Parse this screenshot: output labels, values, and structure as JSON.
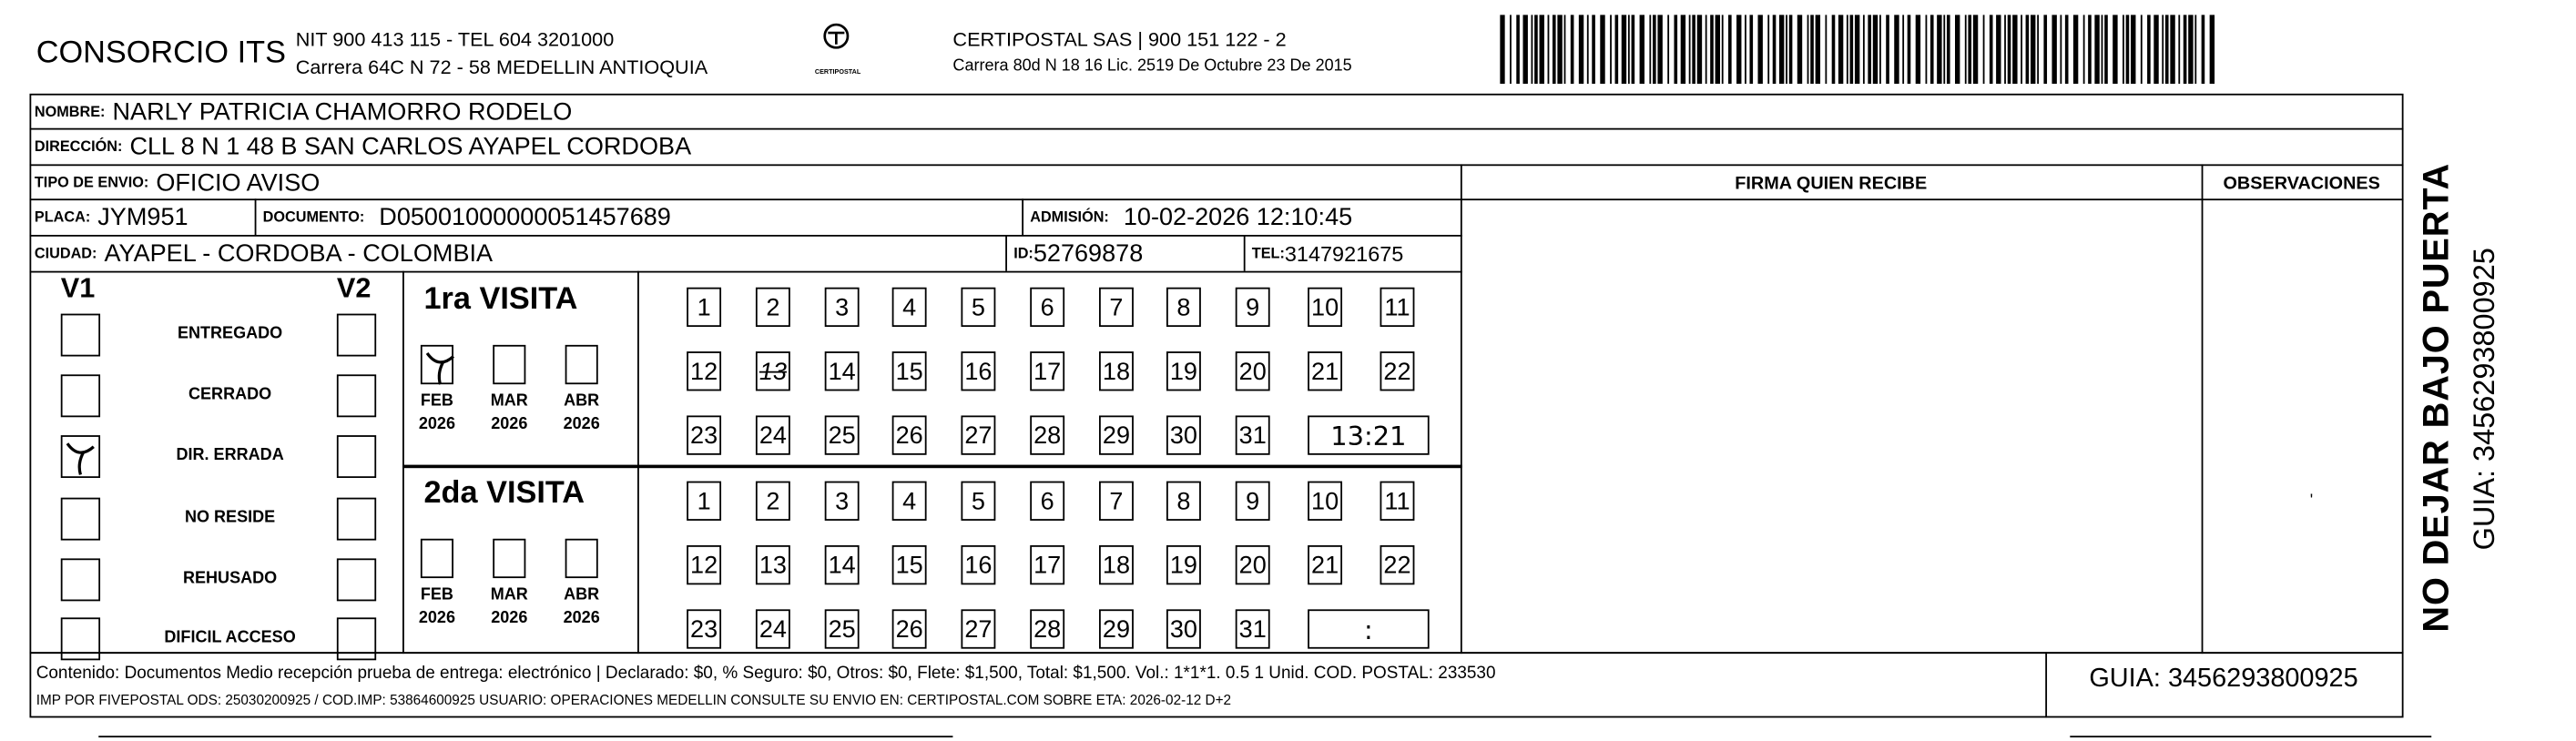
{
  "header": {
    "company": "CONSORCIO ITS",
    "nit_line": "NIT 900 413 115 - TEL 604 3201000",
    "address_line": "Carrera 64C N 72 - 58 MEDELLIN ANTIOQUIA",
    "logo_text": "CERTIPOSTAL",
    "carrier_line": "CERTIPOSTAL SAS | 900 151 122 - 2",
    "carrier_address": "Carrera 80d N 18 16  Lic. 2519 De Octubre 23 De 2015"
  },
  "fields": {
    "nombre_label": "NOMBRE:",
    "nombre": "NARLY PATRICIA CHAMORRO RODELO",
    "direccion_label": "DIRECCIÓN:",
    "direccion": "CLL 8 N 1 48 B SAN CARLOS AYAPEL CORDOBA",
    "tipo_label": "TIPO DE ENVIO:",
    "tipo": "OFICIO AVISO",
    "placa_label": "PLACA:",
    "placa": "JYM951",
    "documento_label": "DOCUMENTO:",
    "documento": "D05001000000051457689",
    "admision_label": "ADMISIÓN:",
    "admision": "10-02-2026 12:10:45",
    "ciudad_label": "CIUDAD:",
    "ciudad": "AYAPEL - CORDOBA - COLOMBIA",
    "id_label": "ID:",
    "id": "52769878",
    "tel_label": "TEL:",
    "tel": "3147921675"
  },
  "columns": {
    "firma": "FIRMA QUIEN RECIBE",
    "observaciones": "OBSERVACIONES"
  },
  "status": {
    "v1": "V1",
    "v2": "V2",
    "items": [
      {
        "label": "ENTREGADO",
        "v1": false,
        "v2": false
      },
      {
        "label": "CERRADO",
        "v1": false,
        "v2": false
      },
      {
        "label": "DIR. ERRADA",
        "v1": true,
        "v2": false
      },
      {
        "label": "NO RESIDE",
        "v1": false,
        "v2": false
      },
      {
        "label": "REHUSADO",
        "v1": false,
        "v2": false
      },
      {
        "label": "DIFICIL ACCESO",
        "v1": false,
        "v2": false
      }
    ]
  },
  "visits": [
    {
      "title": "1ra VISITA",
      "months": [
        {
          "m": "FEB",
          "y": "2026",
          "checked": true
        },
        {
          "m": "MAR",
          "y": "2026",
          "checked": false
        },
        {
          "m": "ABR",
          "y": "2026",
          "checked": false
        }
      ],
      "days": [
        "1",
        "2",
        "3",
        "4",
        "5",
        "6",
        "7",
        "8",
        "9",
        "10",
        "11",
        "12",
        "13",
        "14",
        "15",
        "16",
        "17",
        "18",
        "19",
        "20",
        "21",
        "22",
        "23",
        "24",
        "25",
        "26",
        "27",
        "28",
        "29",
        "30",
        "31"
      ],
      "marked_day": "13",
      "time": "13:21"
    },
    {
      "title": "2da VISITA",
      "months": [
        {
          "m": "FEB",
          "y": "2026",
          "checked": false
        },
        {
          "m": "MAR",
          "y": "2026",
          "checked": false
        },
        {
          "m": "ABR",
          "y": "2026",
          "checked": false
        }
      ],
      "days": [
        "1",
        "2",
        "3",
        "4",
        "5",
        "6",
        "7",
        "8",
        "9",
        "10",
        "11",
        "12",
        "13",
        "14",
        "15",
        "16",
        "17",
        "18",
        "19",
        "20",
        "21",
        "22",
        "23",
        "24",
        "25",
        "26",
        "27",
        "28",
        "29",
        "30",
        "31"
      ],
      "marked_day": "",
      "time": ":"
    }
  ],
  "footer": {
    "contenido": "Contenido: Documentos Medio recepción prueba de entrega: electrónico | Declarado: $0, % Seguro: $0, Otros: $0, Flete: $1,500, Total: $1,500. Vol.: 1*1*1. 0.5  1 Unid. COD. POSTAL: 233530",
    "imp": "IMP POR FIVEPOSTAL ODS: 25030200925 / COD.IMP: 53864600925 USUARIO: OPERACIONES MEDELLIN CONSULTE SU ENVIO EN: CERTIPOSTAL.COM SOBRE ETA: 2026-02-12 D+2",
    "guia": "GUIA: 3456293800925"
  },
  "side": {
    "notice": "NO DEJAR BAJO PUERTA",
    "guia": "GUIA: 3456293800925"
  }
}
